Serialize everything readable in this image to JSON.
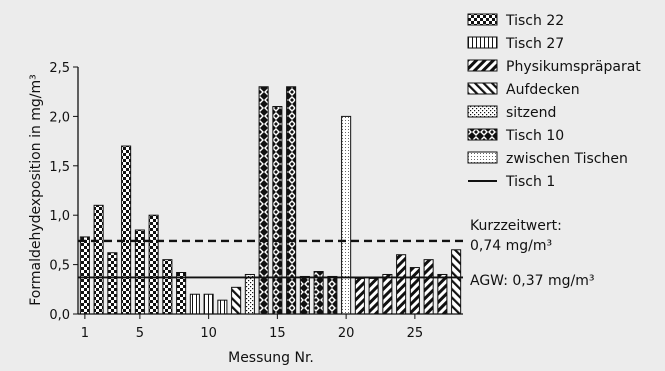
{
  "chart_data": {
    "type": "bar",
    "xlabel": "Messung Nr.",
    "ylabel": "Formaldehydexposition in mg/m³",
    "ylim": [
      0,
      2.5
    ],
    "xlim": [
      0.5,
      28.5
    ],
    "y_ticks": [
      "0,0",
      "0,5",
      "1,0",
      "1,5",
      "2,0",
      "2,5"
    ],
    "y_tick_values": [
      0,
      0.5,
      1.0,
      1.5,
      2.0,
      2.5
    ],
    "x_ticks": [
      "1",
      "5",
      "10",
      "15",
      "20",
      "25"
    ],
    "x_tick_values": [
      1,
      5,
      10,
      15,
      20,
      25
    ],
    "grid": false,
    "legend_position": "right",
    "series": [
      {
        "name": "Tisch 22",
        "pattern": "checker",
        "x": [
          1,
          2,
          3,
          4,
          5,
          6,
          7,
          8
        ],
        "values": [
          0.78,
          1.1,
          0.62,
          1.7,
          0.85,
          1.0,
          0.55,
          0.42
        ]
      },
      {
        "name": "Tisch 27",
        "pattern": "vlines",
        "x": [
          9,
          10,
          11
        ],
        "values": [
          0.2,
          0.2,
          0.14
        ]
      },
      {
        "name": "Physikumspräparat",
        "pattern": "diagonal-thick",
        "x": [
          21,
          22,
          23,
          24,
          25,
          26,
          27
        ],
        "values": [
          0.36,
          0.36,
          0.4,
          0.6,
          0.47,
          0.55,
          0.4
        ]
      },
      {
        "name": "Aufdecken",
        "pattern": "diagonal",
        "x": [
          12,
          28
        ],
        "values": [
          0.27,
          0.65
        ]
      },
      {
        "name": "sitzend",
        "pattern": "dots",
        "x": [
          13
        ],
        "values": [
          0.4
        ]
      },
      {
        "name": "Tisch 10",
        "pattern": "diamond",
        "x": [
          14,
          15,
          16,
          17,
          18,
          19
        ],
        "values": [
          2.3,
          2.1,
          2.3,
          0.38,
          0.43,
          0.38
        ]
      },
      {
        "name": "zwischen Tischen",
        "pattern": "fine-dots",
        "x": [
          20
        ],
        "values": [
          2.0
        ]
      }
    ],
    "reference_lines": [
      {
        "name": "Tisch 1",
        "value": 0.37,
        "style": "solid",
        "label": "AGW: 0,37 mg/m³"
      },
      {
        "name": "Kurzzeitwert",
        "value": 0.74,
        "style": "dashed",
        "label_line1": "Kurzzeitwert:",
        "label_line2": "0,74 mg/m³"
      }
    ]
  },
  "colors": {
    "background": "#ececec",
    "ink": "#111111",
    "bar_fill": "#ffffff"
  }
}
